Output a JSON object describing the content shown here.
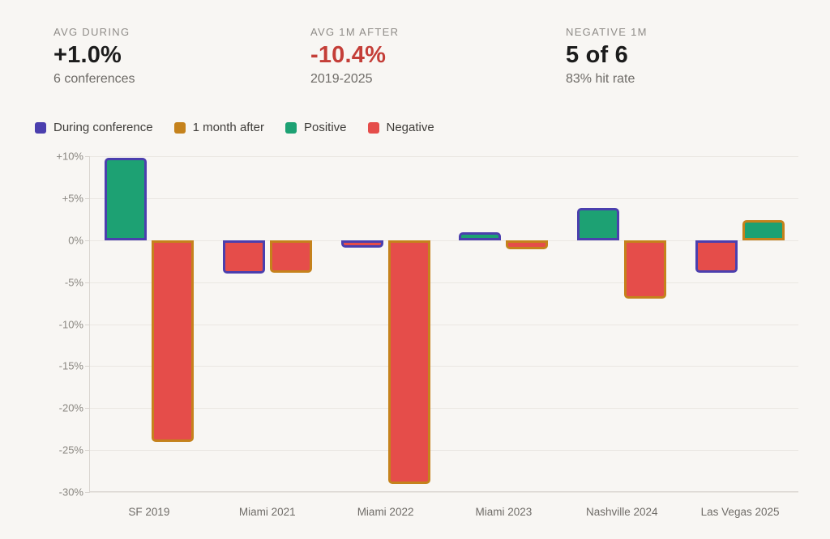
{
  "stats": [
    {
      "label": "AVG DURING",
      "value": "+1.0%",
      "sub": "6 conferences",
      "value_color": "#1c1c1c"
    },
    {
      "label": "AVG 1M AFTER",
      "value": "-10.4%",
      "sub": "2019-2025",
      "value_color": "#c43e38"
    },
    {
      "label": "NEGATIVE 1M",
      "value": "5 of 6",
      "sub": "83% hit rate",
      "value_color": "#1c1c1c"
    }
  ],
  "legend": [
    {
      "label": "During conference",
      "color": "#4b3fae"
    },
    {
      "label": "1 month after",
      "color": "#c5821c"
    },
    {
      "label": "Positive",
      "color": "#1da173"
    },
    {
      "label": "Negative",
      "color": "#e54d4a"
    }
  ],
  "chart_data": {
    "type": "bar",
    "categories": [
      "SF 2019",
      "Miami 2021",
      "Miami 2022",
      "Miami 2023",
      "Nashville 2024",
      "Las Vegas 2025"
    ],
    "series": [
      {
        "name": "During conference",
        "values": [
          9.8,
          -4.0,
          -0.9,
          0.9,
          3.8,
          -3.9
        ],
        "border_color": "#4b3fae"
      },
      {
        "name": "1 month after",
        "values": [
          -24.0,
          -3.9,
          -29.0,
          -1.1,
          -7.0,
          2.4
        ],
        "border_color": "#c5821c"
      }
    ],
    "positive_fill": "#1da173",
    "negative_fill": "#e54d4a",
    "title": "",
    "xlabel": "",
    "ylabel": "",
    "ylim": [
      -30,
      10
    ],
    "y_tick_values": [
      10,
      5,
      0,
      -5,
      -10,
      -15,
      -20,
      -25,
      -30
    ],
    "y_ticks": [
      "+10%",
      "+5%",
      "0%",
      "-5%",
      "-10%",
      "-15%",
      "-20%",
      "-25%",
      "-30%"
    ],
    "grid": true,
    "legend_position": "top-left"
  }
}
